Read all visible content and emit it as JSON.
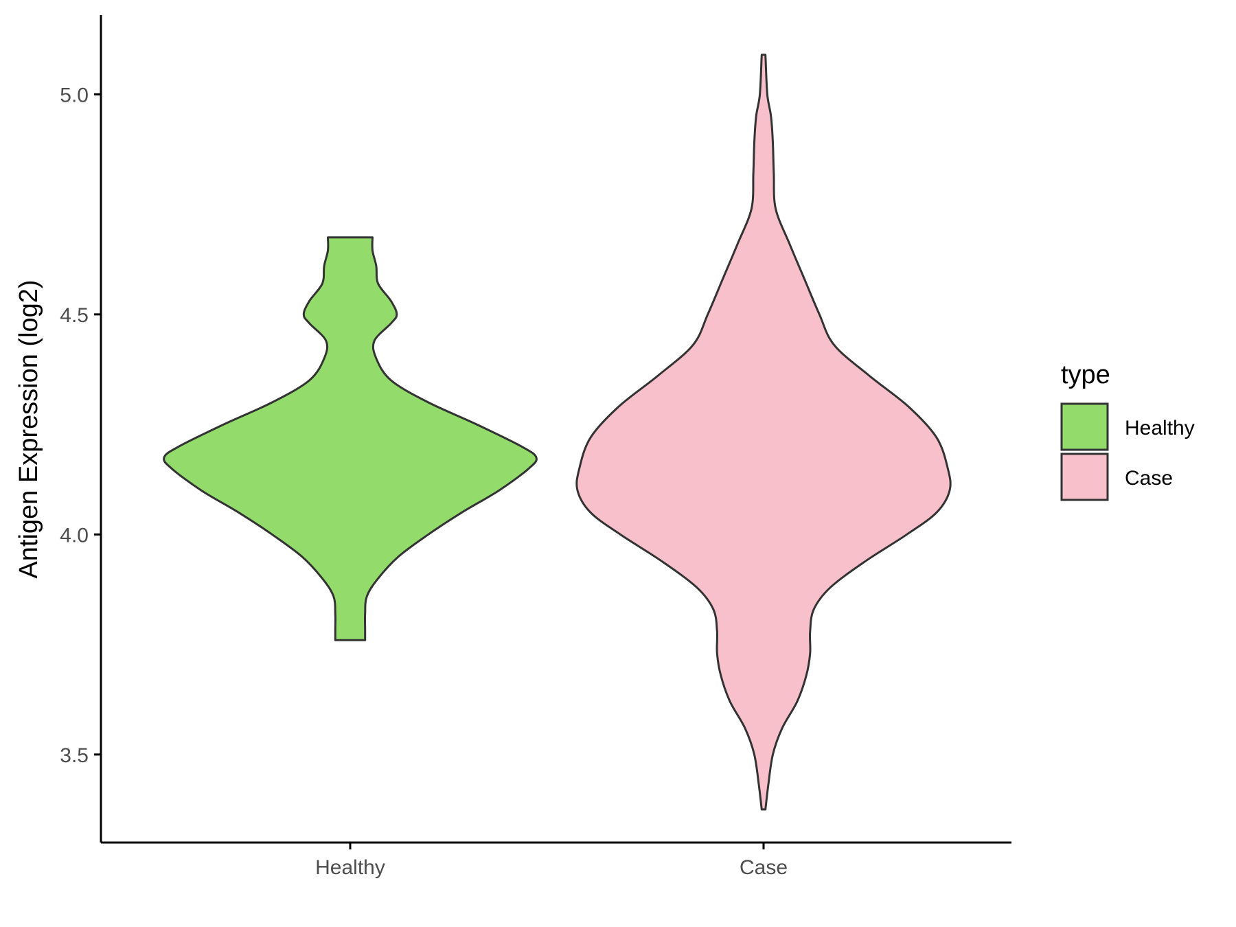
{
  "chart_data": {
    "type": "violin",
    "title": "",
    "xlabel": "",
    "ylabel": "Antigen Expression (log2)",
    "ylim": [
      3.3,
      5.18
    ],
    "yticks": [
      3.5,
      4.0,
      4.5,
      5.0
    ],
    "ytick_labels": [
      "3.5",
      "4.0",
      "4.5",
      "5.0"
    ],
    "categories": [
      "Healthy",
      "Case"
    ],
    "grid": false,
    "legend": {
      "title": "type",
      "position": "right",
      "entries": [
        {
          "label": "Healthy",
          "color": "#93dc6b"
        },
        {
          "label": "Case",
          "color": "#f8c0cb"
        }
      ]
    },
    "series": [
      {
        "name": "Healthy",
        "color": "#93dc6b",
        "min": 3.76,
        "max": 4.675,
        "profile": [
          [
            3.76,
            0.08
          ],
          [
            3.785,
            0.08
          ],
          [
            3.82,
            0.08
          ],
          [
            3.86,
            0.09
          ],
          [
            3.9,
            0.15
          ],
          [
            3.95,
            0.26
          ],
          [
            4.0,
            0.42
          ],
          [
            4.05,
            0.6
          ],
          [
            4.1,
            0.8
          ],
          [
            4.15,
            0.96
          ],
          [
            4.175,
            1.0
          ],
          [
            4.2,
            0.92
          ],
          [
            4.25,
            0.68
          ],
          [
            4.3,
            0.42
          ],
          [
            4.35,
            0.22
          ],
          [
            4.4,
            0.14
          ],
          [
            4.44,
            0.13
          ],
          [
            4.48,
            0.22
          ],
          [
            4.5,
            0.25
          ],
          [
            4.53,
            0.22
          ],
          [
            4.57,
            0.15
          ],
          [
            4.61,
            0.14
          ],
          [
            4.645,
            0.12
          ],
          [
            4.675,
            0.12
          ]
        ]
      },
      {
        "name": "Case",
        "color": "#f8c0cb",
        "min": 3.375,
        "max": 5.09,
        "profile": [
          [
            3.375,
            0.01
          ],
          [
            3.43,
            0.025
          ],
          [
            3.5,
            0.05
          ],
          [
            3.56,
            0.1
          ],
          [
            3.62,
            0.18
          ],
          [
            3.68,
            0.23
          ],
          [
            3.73,
            0.25
          ],
          [
            3.78,
            0.25
          ],
          [
            3.83,
            0.27
          ],
          [
            3.88,
            0.36
          ],
          [
            3.94,
            0.55
          ],
          [
            4.0,
            0.77
          ],
          [
            4.05,
            0.93
          ],
          [
            4.1,
            1.0
          ],
          [
            4.15,
            0.99
          ],
          [
            4.22,
            0.93
          ],
          [
            4.29,
            0.78
          ],
          [
            4.36,
            0.57
          ],
          [
            4.43,
            0.38
          ],
          [
            4.5,
            0.3
          ],
          [
            4.58,
            0.22
          ],
          [
            4.66,
            0.14
          ],
          [
            4.74,
            0.065
          ],
          [
            4.82,
            0.055
          ],
          [
            4.89,
            0.05
          ],
          [
            4.95,
            0.04
          ],
          [
            5.0,
            0.02
          ],
          [
            5.09,
            0.01
          ]
        ]
      }
    ]
  }
}
